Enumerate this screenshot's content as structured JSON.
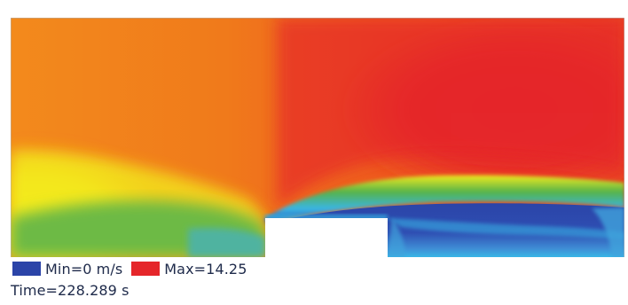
{
  "colors": {
    "min": "#2b44a8",
    "max": "#e5262a",
    "orange": "#f39a1e",
    "yellow": "#f3ec1e",
    "green": "#56b349",
    "cyan": "#39b6e6",
    "frame": "#b0b0b0"
  },
  "legend": {
    "min_label": "Min=0 m/s",
    "max_label": "Max=14.25"
  },
  "time_label": "Time=228.289 s"
}
